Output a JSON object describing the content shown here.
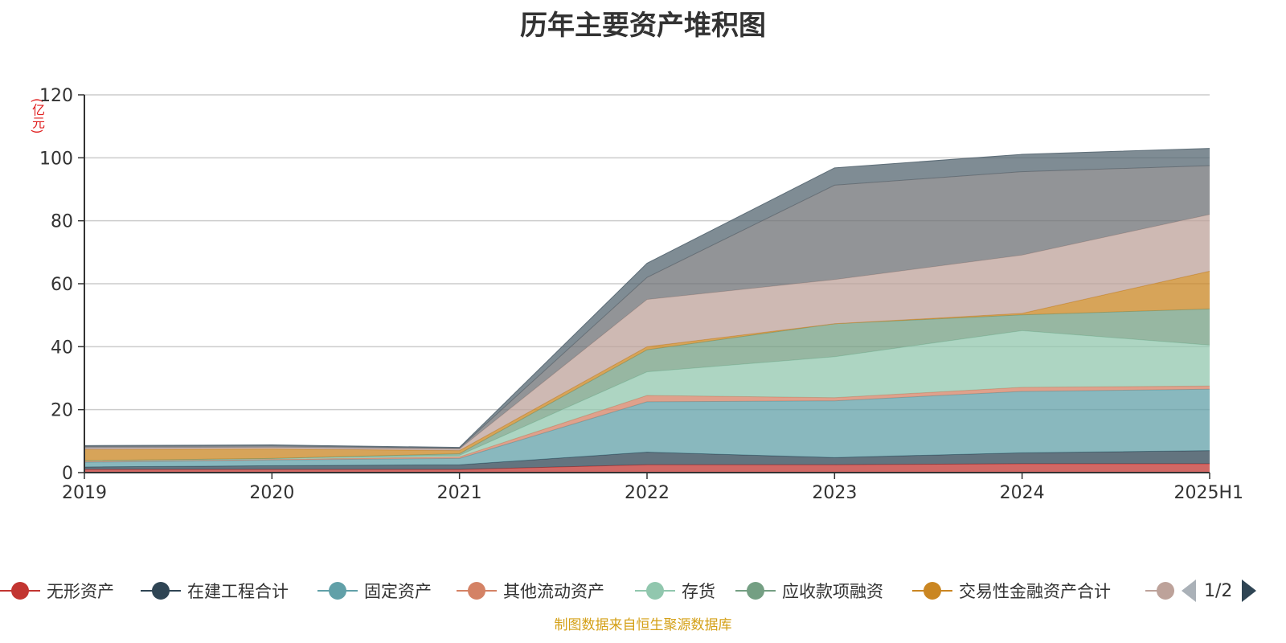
{
  "title": "历年主要资产堆积图",
  "source_note": "制图数据来自恒生聚源数据库",
  "pager": {
    "text": "1/2"
  },
  "legend": {
    "items": [
      {
        "label": "无形资产",
        "color": "#c23531"
      },
      {
        "label": "在建工程合计",
        "color": "#2f4554"
      },
      {
        "label": "固定资产",
        "color": "#61a0a8"
      },
      {
        "label": "其他流动资产",
        "color": "#d48265"
      },
      {
        "label": "存货",
        "color": "#91c7ae"
      },
      {
        "label": "应收款项融资",
        "color": "#749f83"
      },
      {
        "label": "交易性金融资产合计",
        "color": "#ca8622"
      },
      {
        "label": "",
        "color": "#bda29a"
      }
    ]
  },
  "chart_data": {
    "type": "area",
    "stacked": true,
    "title": "历年主要资产堆积图",
    "unit": "(亿元)",
    "categories": [
      "2019",
      "2020",
      "2021",
      "2022",
      "2023",
      "2024",
      "2025H1"
    ],
    "ylim": [
      0,
      120
    ],
    "yticks": [
      0,
      20,
      40,
      60,
      80,
      100,
      120
    ],
    "grid": true,
    "legend_position": "bottom",
    "series": [
      {
        "name": "无形资产",
        "color": "#c23531",
        "values": [
          1.0,
          1.0,
          1.0,
          2.5,
          2.5,
          2.8,
          2.8
        ]
      },
      {
        "name": "在建工程合计",
        "color": "#2f4554",
        "values": [
          0.8,
          1.2,
          1.5,
          4.0,
          2.3,
          3.5,
          4.2
        ]
      },
      {
        "name": "固定资产",
        "color": "#61a0a8",
        "values": [
          1.5,
          1.8,
          2.0,
          16.0,
          18.0,
          19.5,
          19.5
        ]
      },
      {
        "name": "其他流动资产",
        "color": "#d48265",
        "values": [
          0.2,
          0.2,
          0.5,
          2.0,
          1.0,
          1.3,
          1.0
        ]
      },
      {
        "name": "存货",
        "color": "#91c7ae",
        "values": [
          0.3,
          0.3,
          0.5,
          7.5,
          13.0,
          18.0,
          13.0
        ]
      },
      {
        "name": "应收款项融资",
        "color": "#749f83",
        "values": [
          0.0,
          0.0,
          0.5,
          7.0,
          10.5,
          5.0,
          11.5
        ]
      },
      {
        "name": "交易性金融资产合计",
        "color": "#ca8622",
        "values": [
          3.5,
          3.0,
          1.0,
          1.0,
          0.0,
          0.5,
          12.0
        ]
      },
      {
        "name": "",
        "color": "#bda29a",
        "values": [
          0.5,
          0.5,
          0.5,
          15.0,
          14.0,
          18.5,
          18.0
        ]
      },
      {
        "name": "",
        "color": "#6e7074",
        "values": [
          0.5,
          0.5,
          0.3,
          7.0,
          30.0,
          26.5,
          15.5
        ]
      },
      {
        "name": "",
        "color": "#546570",
        "values": [
          0.3,
          0.3,
          0.2,
          4.5,
          5.5,
          5.5,
          5.5
        ]
      }
    ]
  }
}
